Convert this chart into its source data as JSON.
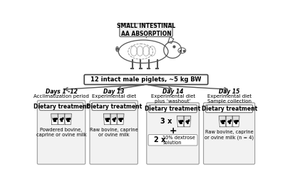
{
  "title": "SMALL INTESTINAL\nAA ABSORPTION",
  "piglet_text": "12 intact male piglets, ~5 kg BW",
  "bg_color": "#f5f5f5",
  "columns": [
    {
      "day": "Days 1 -12",
      "subtitle": "Acclimatization period",
      "box_label": "Dietary treatment",
      "n_cups": 3,
      "prefix": null,
      "caption": "Powdered bovine,\ncaprine or ovine milk",
      "has_dextrose": false
    },
    {
      "day": "Day 13",
      "subtitle": "Experimental diet",
      "box_label": "Dietary treatment",
      "n_cups": 3,
      "prefix": null,
      "caption": "Raw bovine, caprine\nor ovine milk",
      "has_dextrose": false
    },
    {
      "day": "Day 14",
      "subtitle": "Experimental diet\nplus ‘washout’",
      "box_label": "Dietary treatment",
      "n_cups": 2,
      "prefix": "3 x",
      "caption": null,
      "has_dextrose": true
    },
    {
      "day": "Day 15",
      "subtitle": "Experimental diet\nSample collection",
      "box_label": "Dietary treatment",
      "n_cups": 3,
      "prefix": null,
      "caption": "Raw bovine, caprine\nor ovine milk (n = 4)",
      "has_dextrose": false
    }
  ]
}
